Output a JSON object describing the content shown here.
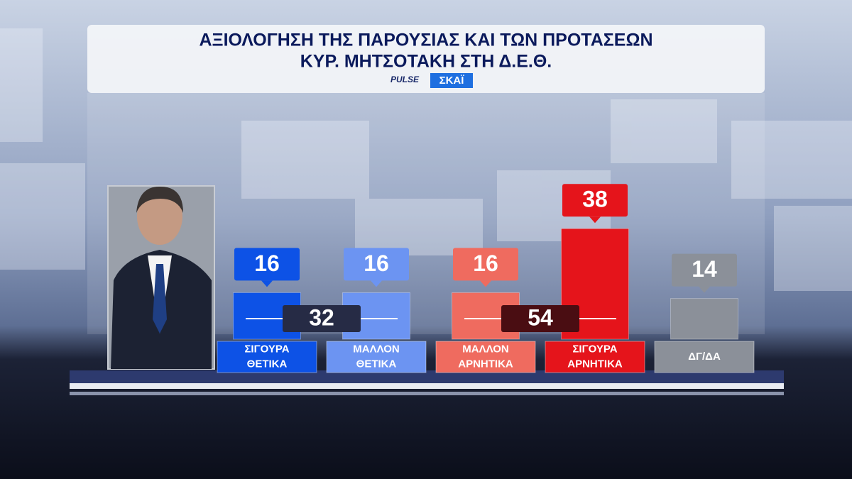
{
  "chart_data": {
    "type": "bar",
    "title": [
      "ΑΞΙΟΛΟΓΗΣΗ ΤΗΣ ΠΑΡΟΥΣΙΑΣ ΚΑΙ ΤΩΝ ΠΡΟΤΑΣΕΩΝ",
      "ΚΥΡ. ΜΗΤΣΟΤΑΚΗ ΣΤΗ Δ.Ε.Θ."
    ],
    "logos": [
      "PULSE",
      "ΣΚΑΪ"
    ],
    "categories": [
      [
        "ΣΙΓΟΥΡΑ",
        "ΘΕΤΙΚΑ"
      ],
      [
        "ΜΑΛΛΟΝ",
        "ΘΕΤΙΚΑ"
      ],
      [
        "ΜΑΛΛΟΝ",
        "ΑΡΝΗΤΙΚΑ"
      ],
      [
        "ΣΙΓΟΥΡΑ",
        "ΑΡΝΗΤΙΚΑ"
      ],
      [
        "ΔΓ/ΔΑ"
      ]
    ],
    "values": [
      16,
      16,
      16,
      38,
      14
    ],
    "colors": [
      "#0d52e6",
      "#6c94f2",
      "#ef6b5f",
      "#e5141b",
      "#8b9099"
    ],
    "totals": [
      32,
      54
    ],
    "total_colors": [
      "#262b45",
      "#4a0d12"
    ]
  }
}
